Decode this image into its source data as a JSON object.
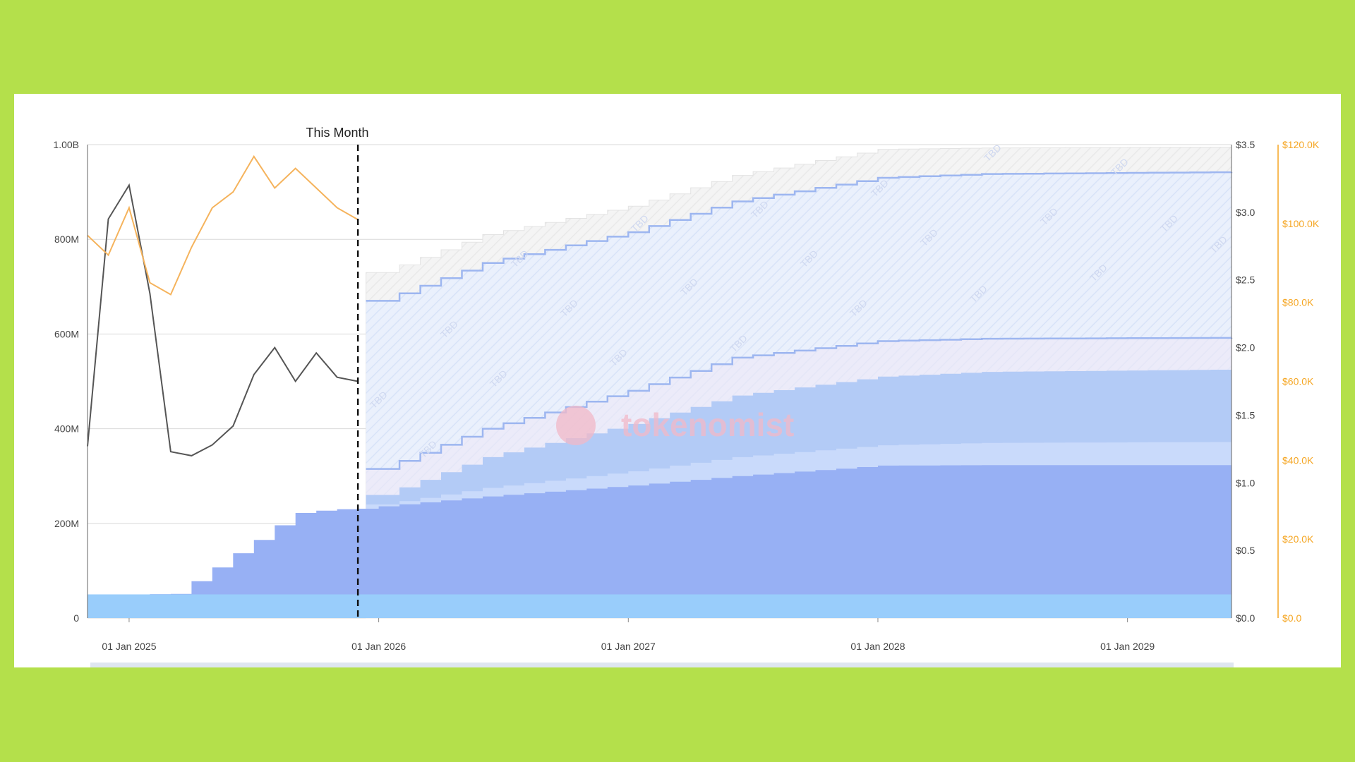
{
  "chart_data": {
    "type": "area",
    "marker": {
      "label": "This Month",
      "x": "2025-12"
    },
    "watermark": {
      "text": "tokenomist"
    },
    "tbd_label": "TBD",
    "y_left": {
      "ticks": [
        "0",
        "200M",
        "400M",
        "600M",
        "800M",
        "1.00B"
      ],
      "range": [
        0,
        1000
      ]
    },
    "y_right_price": {
      "ticks": [
        "$0.0",
        "$0.5",
        "$1.0",
        "$1.5",
        "$2.0",
        "$2.5",
        "$3.0",
        "$3.5"
      ],
      "range": [
        0,
        3.5
      ]
    },
    "y_right_volume": {
      "ticks": [
        "$0.0",
        "$20.0K",
        "$40.0K",
        "$60.0K",
        "$80.0K",
        "$100.0K",
        "$120.0K"
      ],
      "range": [
        0,
        120
      ]
    },
    "x_axis": {
      "ticks": [
        "01 Jan 2025",
        "01 Jan 2026",
        "01 Jan 2027",
        "01 Jan 2028",
        "01 Jan 2029"
      ],
      "start": "2024-11",
      "end": "2029-06"
    },
    "colors": {
      "base_band": "#99cdfb",
      "main_band": "#97b0f4",
      "light_band": "#c9dafb",
      "mid_band": "#b3cbf6",
      "projected_outline": "#9db6f0",
      "grey_band": "#f0f0f0",
      "price_line": "#555555",
      "volume_line": "#f5b35c",
      "right_axis2": "#f5a623"
    },
    "series": [
      {
        "kind": "price-line",
        "months": [
          "2024-11",
          "2024-12",
          "2025-01",
          "2025-02",
          "2025-03",
          "2025-04",
          "2025-05",
          "2025-06",
          "2025-07",
          "2025-08",
          "2025-09",
          "2025-10",
          "2025-11",
          "2025-12"
        ],
        "values": [
          1.27,
          2.95,
          3.2,
          2.4,
          1.23,
          1.2,
          1.28,
          1.42,
          1.8,
          2.0,
          1.75,
          1.96,
          1.78,
          1.75
        ]
      },
      {
        "kind": "volume-line",
        "months": [
          "2024-11",
          "2024-12",
          "2025-01",
          "2025-02",
          "2025-03",
          "2025-04",
          "2025-05",
          "2025-06",
          "2025-07",
          "2025-08",
          "2025-09",
          "2025-10",
          "2025-11",
          "2025-12"
        ],
        "values": [
          97,
          92,
          104,
          85,
          82,
          94,
          104,
          108,
          117,
          109,
          114,
          109,
          104,
          101
        ]
      },
      {
        "kind": "base-allocation",
        "months": [
          "2024-11",
          "2029-06"
        ],
        "values": [
          50,
          50
        ]
      },
      {
        "kind": "unlocked-supply",
        "months": [
          "2024-11",
          "2025-01",
          "2025-03",
          "2025-04",
          "2025-05",
          "2025-06",
          "2025-07",
          "2025-08",
          "2025-09",
          "2025-10",
          "2025-11",
          "2025-12",
          "2026-01",
          "2026-06",
          "2027-01",
          "2027-06",
          "2028-01",
          "2028-06",
          "2029-06"
        ],
        "values": [
          50,
          50,
          51,
          78,
          107,
          137,
          165,
          196,
          222,
          227,
          230,
          231,
          236,
          257,
          280,
          300,
          322,
          323,
          323
        ]
      },
      {
        "kind": "projected-band-1",
        "months": [
          "2026-01",
          "2026-06",
          "2027-01",
          "2027-06",
          "2028-01",
          "2028-06",
          "2029-06"
        ],
        "values": [
          240,
          275,
          310,
          340,
          365,
          370,
          372
        ]
      },
      {
        "kind": "projected-band-2",
        "months": [
          "2026-01",
          "2026-06",
          "2027-01",
          "2027-06",
          "2028-01",
          "2028-06",
          "2029-06"
        ],
        "values": [
          260,
          340,
          410,
          470,
          510,
          520,
          525
        ]
      },
      {
        "kind": "projected-outline-lower",
        "months": [
          "2026-01",
          "2026-06",
          "2027-01",
          "2027-06",
          "2028-01",
          "2028-06",
          "2029-06"
        ],
        "values": [
          315,
          400,
          480,
          550,
          585,
          590,
          592
        ]
      },
      {
        "kind": "projected-outline-upper",
        "months": [
          "2026-01",
          "2026-06",
          "2027-01",
          "2027-06",
          "2028-01",
          "2028-06",
          "2029-06"
        ],
        "values": [
          670,
          750,
          815,
          880,
          930,
          938,
          942
        ]
      },
      {
        "kind": "projected-total",
        "months": [
          "2026-01",
          "2026-06",
          "2027-01",
          "2027-06",
          "2028-01",
          "2028-06",
          "2029-06"
        ],
        "values": [
          730,
          810,
          870,
          935,
          990,
          993,
          995
        ]
      }
    ]
  }
}
